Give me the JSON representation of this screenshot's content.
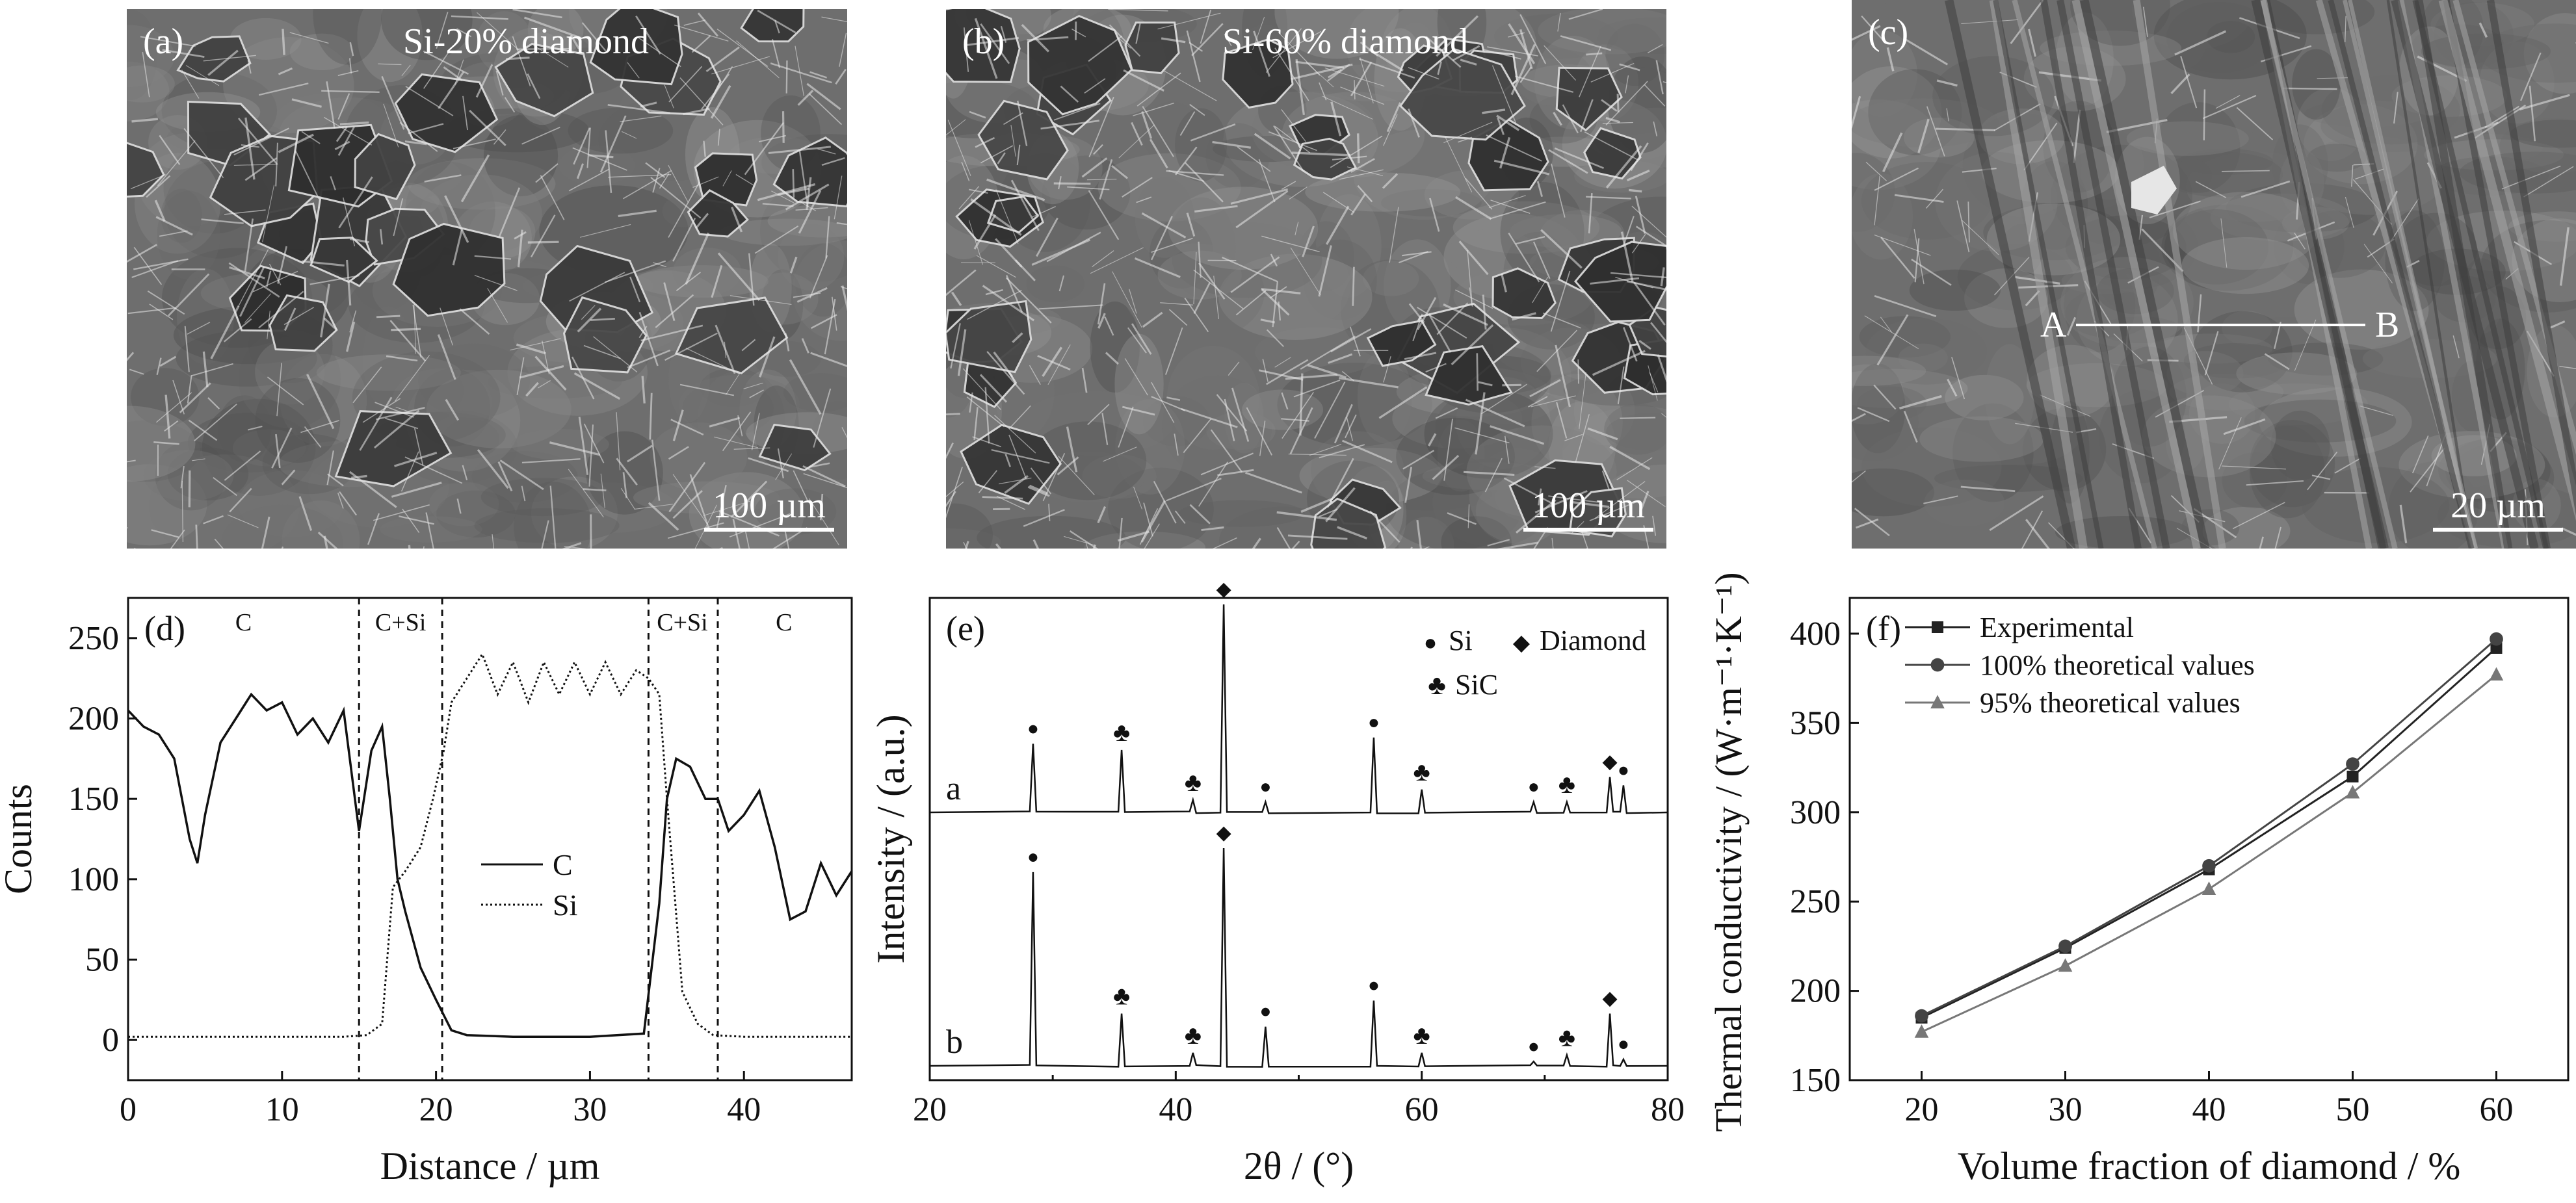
{
  "sem": [
    {
      "label": "(a)",
      "title": "Si-20% diamond",
      "scalebar": "100 µm"
    },
    {
      "label": "(b)",
      "title": "Si-60% diamond",
      "scalebar": "100 µm"
    },
    {
      "label": "(c)",
      "title": "",
      "scalebar": "20 µm",
      "line_start": "A",
      "line_end": "B"
    }
  ],
  "chart_data": [
    {
      "panel": "(d)",
      "type": "line",
      "xlabel": "Distance / µm",
      "ylabel": "Counts",
      "xlim": [
        0,
        47
      ],
      "ylim": [
        -25,
        275
      ],
      "xticks": [
        0,
        10,
        20,
        30,
        40
      ],
      "yticks": [
        0,
        50,
        100,
        150,
        200,
        250
      ],
      "region_lines": [
        15,
        20.4,
        33.8,
        38.3
      ],
      "region_labels": [
        {
          "text": "C",
          "x": 7.5
        },
        {
          "text": "C+Si",
          "x": 17.7
        },
        {
          "text": "C+Si",
          "x": 36.0
        },
        {
          "text": "C",
          "x": 42.6
        }
      ],
      "series": [
        {
          "name": "C",
          "style": "solid",
          "points": [
            [
              0,
              205
            ],
            [
              1,
              195
            ],
            [
              2,
              190
            ],
            [
              3,
              175
            ],
            [
              4,
              125
            ],
            [
              4.5,
              110
            ],
            [
              5,
              140
            ],
            [
              6,
              185
            ],
            [
              7,
              200
            ],
            [
              8,
              215
            ],
            [
              9,
              205
            ],
            [
              10,
              210
            ],
            [
              11,
              190
            ],
            [
              12,
              200
            ],
            [
              13,
              185
            ],
            [
              14,
              205
            ],
            [
              15,
              130
            ],
            [
              15.8,
              180
            ],
            [
              16.5,
              195
            ],
            [
              17,
              150
            ],
            [
              17.5,
              100
            ],
            [
              18,
              80
            ],
            [
              19,
              45
            ],
            [
              20,
              25
            ],
            [
              21,
              6
            ],
            [
              22,
              3
            ],
            [
              25,
              2
            ],
            [
              30,
              2
            ],
            [
              33.5,
              4
            ],
            [
              34.5,
              85
            ],
            [
              35,
              150
            ],
            [
              35.6,
              175
            ],
            [
              36.5,
              170
            ],
            [
              37.5,
              150
            ],
            [
              38.3,
              150
            ],
            [
              39,
              130
            ],
            [
              40,
              140
            ],
            [
              41,
              155
            ],
            [
              42,
              120
            ],
            [
              43,
              75
            ],
            [
              44,
              80
            ],
            [
              45,
              110
            ],
            [
              46,
              90
            ],
            [
              47,
              105
            ]
          ]
        },
        {
          "name": "Si",
          "style": "dotted",
          "points": [
            [
              0,
              2
            ],
            [
              14,
              2
            ],
            [
              15.5,
              3
            ],
            [
              16.5,
              10
            ],
            [
              17.2,
              95
            ],
            [
              18,
              105
            ],
            [
              19,
              120
            ],
            [
              19.8,
              150
            ],
            [
              20.5,
              180
            ],
            [
              21,
              210
            ],
            [
              22,
              225
            ],
            [
              23,
              240
            ],
            [
              24,
              215
            ],
            [
              25,
              235
            ],
            [
              26,
              210
            ],
            [
              27,
              235
            ],
            [
              28,
              215
            ],
            [
              29,
              235
            ],
            [
              30,
              215
            ],
            [
              31,
              235
            ],
            [
              32,
              215
            ],
            [
              33,
              230
            ],
            [
              33.8,
              225
            ],
            [
              34.5,
              215
            ],
            [
              35,
              150
            ],
            [
              35.5,
              90
            ],
            [
              36,
              30
            ],
            [
              37,
              10
            ],
            [
              38,
              3
            ],
            [
              40,
              2
            ],
            [
              47,
              2
            ]
          ]
        }
      ]
    },
    {
      "panel": "(e)",
      "type": "line",
      "xlabel": "2θ / (°)",
      "ylabel": "Intensity / (a.u.)",
      "xlim": [
        20,
        80
      ],
      "xticks": [
        20,
        40,
        60,
        80
      ],
      "legend": [
        {
          "symbol": "●",
          "label": "Si"
        },
        {
          "symbol": "◆",
          "label": "Diamond"
        },
        {
          "symbol": "♣",
          "label": "SiC"
        }
      ],
      "series": [
        {
          "name": "a",
          "peaks": [
            {
              "x": 28.4,
              "h": 0.33,
              "phase": "Si"
            },
            {
              "x": 35.6,
              "h": 0.3,
              "phase": "SiC"
            },
            {
              "x": 41.4,
              "h": 0.06,
              "phase": "SiC"
            },
            {
              "x": 43.9,
              "h": 1.0,
              "phase": "Diamond"
            },
            {
              "x": 47.3,
              "h": 0.05,
              "phase": "Si"
            },
            {
              "x": 56.1,
              "h": 0.36,
              "phase": "Si"
            },
            {
              "x": 60.0,
              "h": 0.11,
              "phase": "SiC"
            },
            {
              "x": 69.1,
              "h": 0.05,
              "phase": "Si"
            },
            {
              "x": 71.8,
              "h": 0.05,
              "phase": "SiC"
            },
            {
              "x": 75.3,
              "h": 0.17,
              "phase": "Diamond"
            },
            {
              "x": 76.4,
              "h": 0.13,
              "phase": "Si"
            }
          ]
        },
        {
          "name": "b",
          "peaks": [
            {
              "x": 28.4,
              "h": 0.89,
              "phase": "Si"
            },
            {
              "x": 35.6,
              "h": 0.24,
              "phase": "SiC"
            },
            {
              "x": 41.4,
              "h": 0.06,
              "phase": "SiC"
            },
            {
              "x": 43.9,
              "h": 1.0,
              "phase": "Diamond"
            },
            {
              "x": 47.3,
              "h": 0.18,
              "phase": "Si"
            },
            {
              "x": 56.1,
              "h": 0.3,
              "phase": "Si"
            },
            {
              "x": 60.0,
              "h": 0.06,
              "phase": "SiC"
            },
            {
              "x": 69.1,
              "h": 0.02,
              "phase": "Si"
            },
            {
              "x": 71.8,
              "h": 0.05,
              "phase": "SiC"
            },
            {
              "x": 75.3,
              "h": 0.24,
              "phase": "Diamond"
            },
            {
              "x": 76.4,
              "h": 0.03,
              "phase": "Si"
            }
          ]
        }
      ]
    },
    {
      "panel": "(f)",
      "type": "line",
      "xlabel": "Volume fraction of diamond / %",
      "ylabel": "Thermal conductivity / (W·m⁻¹·K⁻¹)",
      "xlim": [
        15,
        65
      ],
      "ylim": [
        150,
        420
      ],
      "xticks": [
        20,
        30,
        40,
        50,
        60
      ],
      "yticks": [
        150,
        200,
        250,
        300,
        350,
        400
      ],
      "x": [
        20,
        30,
        40,
        50,
        60
      ],
      "series": [
        {
          "name": "Experimental",
          "marker": "square",
          "color": "#222222",
          "values": [
            185,
            224,
            268,
            320,
            392
          ]
        },
        {
          "name": "100% theoretical values",
          "marker": "circle",
          "color": "#444444",
          "values": [
            186,
            225,
            270,
            327,
            397
          ]
        },
        {
          "name": "95% theoretical values",
          "marker": "triangle",
          "color": "#777777",
          "values": [
            177,
            214,
            257,
            311,
            377
          ]
        }
      ]
    }
  ]
}
